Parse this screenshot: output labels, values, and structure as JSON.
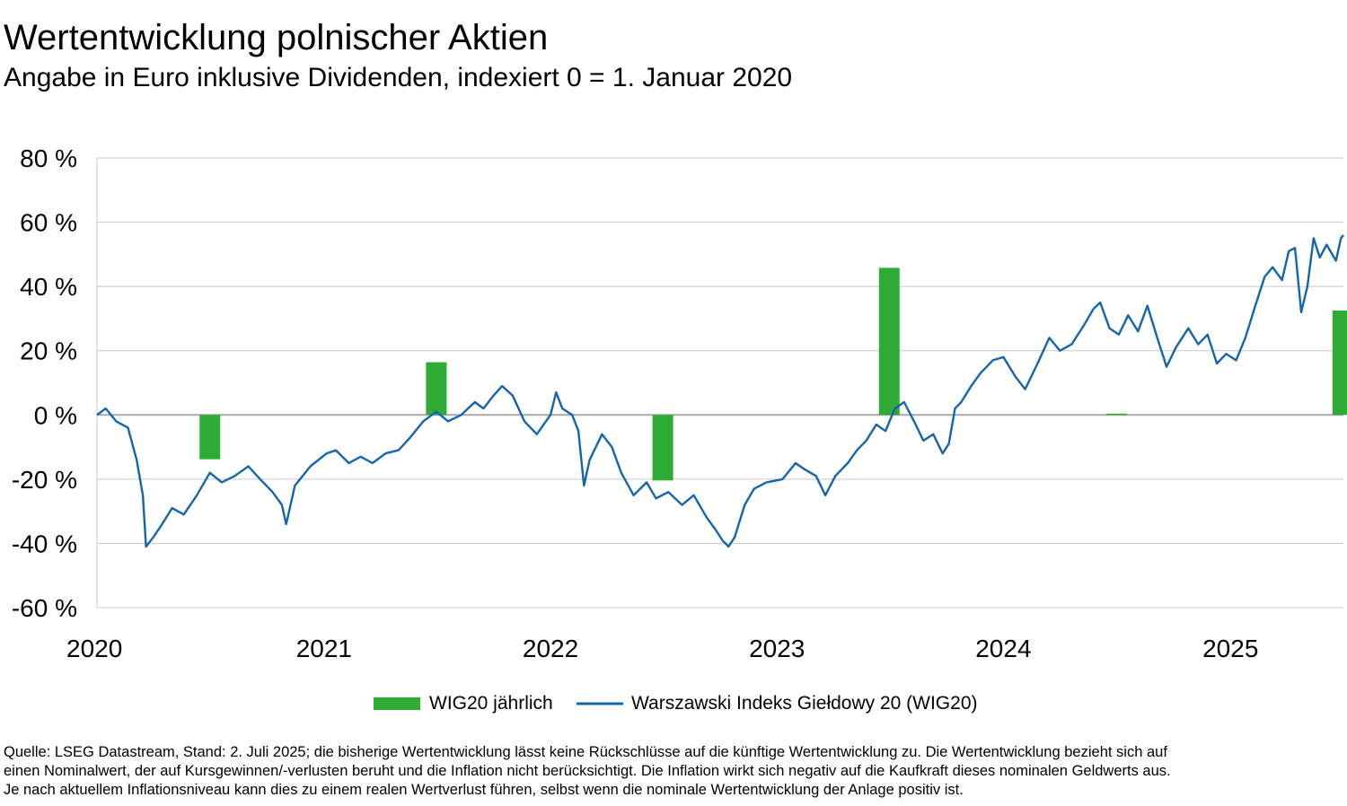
{
  "title": "Wertentwicklung polnischer Aktien",
  "subtitle": "Angabe in Euro inklusive Dividenden, indexiert 0 = 1. Januar 2020",
  "source_lines": [
    "Quelle: LSEG Datastream, Stand: 2. Juli 2025; die bisherige Wertentwicklung lässt keine Rückschlüsse auf die künftige Wertentwicklung zu. Die Wertentwicklung bezieht sich auf",
    "einen Nominalwert, der auf Kursgewinnen/-verlusten beruht und die Inflation nicht berücksichtigt. Die Inflation wirkt sich negativ auf die Kaufkraft dieses nominalen Geldwerts aus.",
    "Je nach aktuellem Inflationsniveau kann dies zu einem realen Wertverlust führen, selbst wenn die nominale Wertentwicklung der Anlage positiv ist."
  ],
  "chart_data": {
    "type": "bar+line",
    "y_unit": "%",
    "ylim": [
      -60,
      80
    ],
    "y_ticks": [
      "80 %",
      "60 %",
      "40 %",
      "20 %",
      "0 %",
      "-20 %",
      "-40 %",
      "-60 %"
    ],
    "y_tick_values": [
      80,
      60,
      40,
      20,
      0,
      -20,
      -40,
      -60
    ],
    "x_ticks": [
      "2020",
      "2021",
      "2022",
      "2023",
      "2024",
      "2025"
    ],
    "x_tick_values": [
      "2020-01-01",
      "2021-01-01",
      "2022-01-01",
      "2023-01-01",
      "2024-01-01",
      "2025-01-01"
    ],
    "xlim": [
      "2020-01-01",
      "2025-07-02"
    ],
    "grid": "horizontal",
    "legend_position": "bottom-center",
    "colors": {
      "bars": "#2fac36",
      "line": "#1565ad",
      "grid": "#c8c8c8",
      "zero": "#a8a8a8"
    },
    "series": [
      {
        "name": "WIG20 jährlich",
        "type": "bar",
        "points": [
          {
            "x": "2020-07-01",
            "y": -13.8
          },
          {
            "x": "2021-07-01",
            "y": 16.4
          },
          {
            "x": "2022-07-01",
            "y": -20.4
          },
          {
            "x": "2023-07-01",
            "y": 45.8
          },
          {
            "x": "2024-07-01",
            "y": 0.4
          },
          {
            "x": "2025-07-01",
            "y": 32.5
          }
        ]
      },
      {
        "name": "Warszawski Indeks Giełdowy 20 (WIG20)",
        "type": "line",
        "points": [
          {
            "x": "2020-01-01",
            "y": 0
          },
          {
            "x": "2020-01-15",
            "y": 2
          },
          {
            "x": "2020-02-01",
            "y": -2
          },
          {
            "x": "2020-02-20",
            "y": -4
          },
          {
            "x": "2020-03-05",
            "y": -14
          },
          {
            "x": "2020-03-15",
            "y": -25
          },
          {
            "x": "2020-03-20",
            "y": -41
          },
          {
            "x": "2020-04-01",
            "y": -38
          },
          {
            "x": "2020-04-15",
            "y": -34
          },
          {
            "x": "2020-05-01",
            "y": -29
          },
          {
            "x": "2020-05-20",
            "y": -31
          },
          {
            "x": "2020-06-10",
            "y": -25
          },
          {
            "x": "2020-07-01",
            "y": -18
          },
          {
            "x": "2020-07-20",
            "y": -21
          },
          {
            "x": "2020-08-10",
            "y": -19
          },
          {
            "x": "2020-09-01",
            "y": -16
          },
          {
            "x": "2020-09-20",
            "y": -20
          },
          {
            "x": "2020-10-10",
            "y": -24
          },
          {
            "x": "2020-10-25",
            "y": -28
          },
          {
            "x": "2020-11-01",
            "y": -34
          },
          {
            "x": "2020-11-15",
            "y": -22
          },
          {
            "x": "2020-12-10",
            "y": -16
          },
          {
            "x": "2021-01-05",
            "y": -12
          },
          {
            "x": "2021-01-20",
            "y": -11
          },
          {
            "x": "2021-02-10",
            "y": -15
          },
          {
            "x": "2021-03-01",
            "y": -13
          },
          {
            "x": "2021-03-20",
            "y": -15
          },
          {
            "x": "2021-04-10",
            "y": -12
          },
          {
            "x": "2021-05-01",
            "y": -11
          },
          {
            "x": "2021-05-20",
            "y": -7
          },
          {
            "x": "2021-06-10",
            "y": -2
          },
          {
            "x": "2021-07-01",
            "y": 1
          },
          {
            "x": "2021-07-20",
            "y": -2
          },
          {
            "x": "2021-08-10",
            "y": 0
          },
          {
            "x": "2021-09-01",
            "y": 4
          },
          {
            "x": "2021-09-15",
            "y": 2
          },
          {
            "x": "2021-10-01",
            "y": 6
          },
          {
            "x": "2021-10-15",
            "y": 9
          },
          {
            "x": "2021-11-01",
            "y": 6
          },
          {
            "x": "2021-11-20",
            "y": -2
          },
          {
            "x": "2021-12-10",
            "y": -6
          },
          {
            "x": "2022-01-01",
            "y": 0
          },
          {
            "x": "2022-01-10",
            "y": 7
          },
          {
            "x": "2022-01-20",
            "y": 2
          },
          {
            "x": "2022-02-05",
            "y": 0
          },
          {
            "x": "2022-02-15",
            "y": -5
          },
          {
            "x": "2022-02-24",
            "y": -22
          },
          {
            "x": "2022-03-05",
            "y": -14
          },
          {
            "x": "2022-03-25",
            "y": -6
          },
          {
            "x": "2022-04-10",
            "y": -10
          },
          {
            "x": "2022-04-25",
            "y": -18
          },
          {
            "x": "2022-05-15",
            "y": -25
          },
          {
            "x": "2022-06-05",
            "y": -21
          },
          {
            "x": "2022-06-20",
            "y": -26
          },
          {
            "x": "2022-07-10",
            "y": -24
          },
          {
            "x": "2022-08-01",
            "y": -28
          },
          {
            "x": "2022-08-20",
            "y": -25
          },
          {
            "x": "2022-09-10",
            "y": -32
          },
          {
            "x": "2022-09-25",
            "y": -36
          },
          {
            "x": "2022-10-05",
            "y": -39
          },
          {
            "x": "2022-10-15",
            "y": -41
          },
          {
            "x": "2022-10-25",
            "y": -38
          },
          {
            "x": "2022-11-10",
            "y": -28
          },
          {
            "x": "2022-11-25",
            "y": -23
          },
          {
            "x": "2022-12-15",
            "y": -21
          },
          {
            "x": "2023-01-10",
            "y": -20
          },
          {
            "x": "2023-01-31",
            "y": -15
          },
          {
            "x": "2023-02-15",
            "y": -17
          },
          {
            "x": "2023-03-05",
            "y": -19
          },
          {
            "x": "2023-03-20",
            "y": -25
          },
          {
            "x": "2023-04-05",
            "y": -19
          },
          {
            "x": "2023-04-25",
            "y": -15
          },
          {
            "x": "2023-05-10",
            "y": -11
          },
          {
            "x": "2023-05-25",
            "y": -8
          },
          {
            "x": "2023-06-10",
            "y": -3
          },
          {
            "x": "2023-06-25",
            "y": -5
          },
          {
            "x": "2023-07-10",
            "y": 2
          },
          {
            "x": "2023-07-25",
            "y": 4
          },
          {
            "x": "2023-08-10",
            "y": -2
          },
          {
            "x": "2023-08-25",
            "y": -8
          },
          {
            "x": "2023-09-10",
            "y": -6
          },
          {
            "x": "2023-09-25",
            "y": -12
          },
          {
            "x": "2023-10-05",
            "y": -9
          },
          {
            "x": "2023-10-15",
            "y": 2
          },
          {
            "x": "2023-10-25",
            "y": 4
          },
          {
            "x": "2023-11-10",
            "y": 9
          },
          {
            "x": "2023-11-25",
            "y": 13
          },
          {
            "x": "2023-12-15",
            "y": 17
          },
          {
            "x": "2024-01-01",
            "y": 18
          },
          {
            "x": "2024-01-20",
            "y": 12
          },
          {
            "x": "2024-02-05",
            "y": 8
          },
          {
            "x": "2024-02-25",
            "y": 16
          },
          {
            "x": "2024-03-15",
            "y": 24
          },
          {
            "x": "2024-04-01",
            "y": 20
          },
          {
            "x": "2024-04-20",
            "y": 22
          },
          {
            "x": "2024-05-10",
            "y": 28
          },
          {
            "x": "2024-05-25",
            "y": 33
          },
          {
            "x": "2024-06-05",
            "y": 35
          },
          {
            "x": "2024-06-20",
            "y": 27
          },
          {
            "x": "2024-07-05",
            "y": 25
          },
          {
            "x": "2024-07-20",
            "y": 31
          },
          {
            "x": "2024-08-05",
            "y": 26
          },
          {
            "x": "2024-08-20",
            "y": 34
          },
          {
            "x": "2024-09-05",
            "y": 24
          },
          {
            "x": "2024-09-20",
            "y": 15
          },
          {
            "x": "2024-10-05",
            "y": 21
          },
          {
            "x": "2024-10-25",
            "y": 27
          },
          {
            "x": "2024-11-10",
            "y": 22
          },
          {
            "x": "2024-11-25",
            "y": 25
          },
          {
            "x": "2024-12-10",
            "y": 16
          },
          {
            "x": "2024-12-25",
            "y": 19
          },
          {
            "x": "2025-01-10",
            "y": 17
          },
          {
            "x": "2025-01-25",
            "y": 24
          },
          {
            "x": "2025-02-10",
            "y": 34
          },
          {
            "x": "2025-02-25",
            "y": 43
          },
          {
            "x": "2025-03-10",
            "y": 46
          },
          {
            "x": "2025-03-25",
            "y": 42
          },
          {
            "x": "2025-04-05",
            "y": 51
          },
          {
            "x": "2025-04-15",
            "y": 52
          },
          {
            "x": "2025-04-25",
            "y": 32
          },
          {
            "x": "2025-05-05",
            "y": 40
          },
          {
            "x": "2025-05-15",
            "y": 55
          },
          {
            "x": "2025-05-25",
            "y": 49
          },
          {
            "x": "2025-06-05",
            "y": 53
          },
          {
            "x": "2025-06-20",
            "y": 48
          },
          {
            "x": "2025-06-28",
            "y": 55
          },
          {
            "x": "2025-07-02",
            "y": 56
          }
        ]
      }
    ]
  }
}
